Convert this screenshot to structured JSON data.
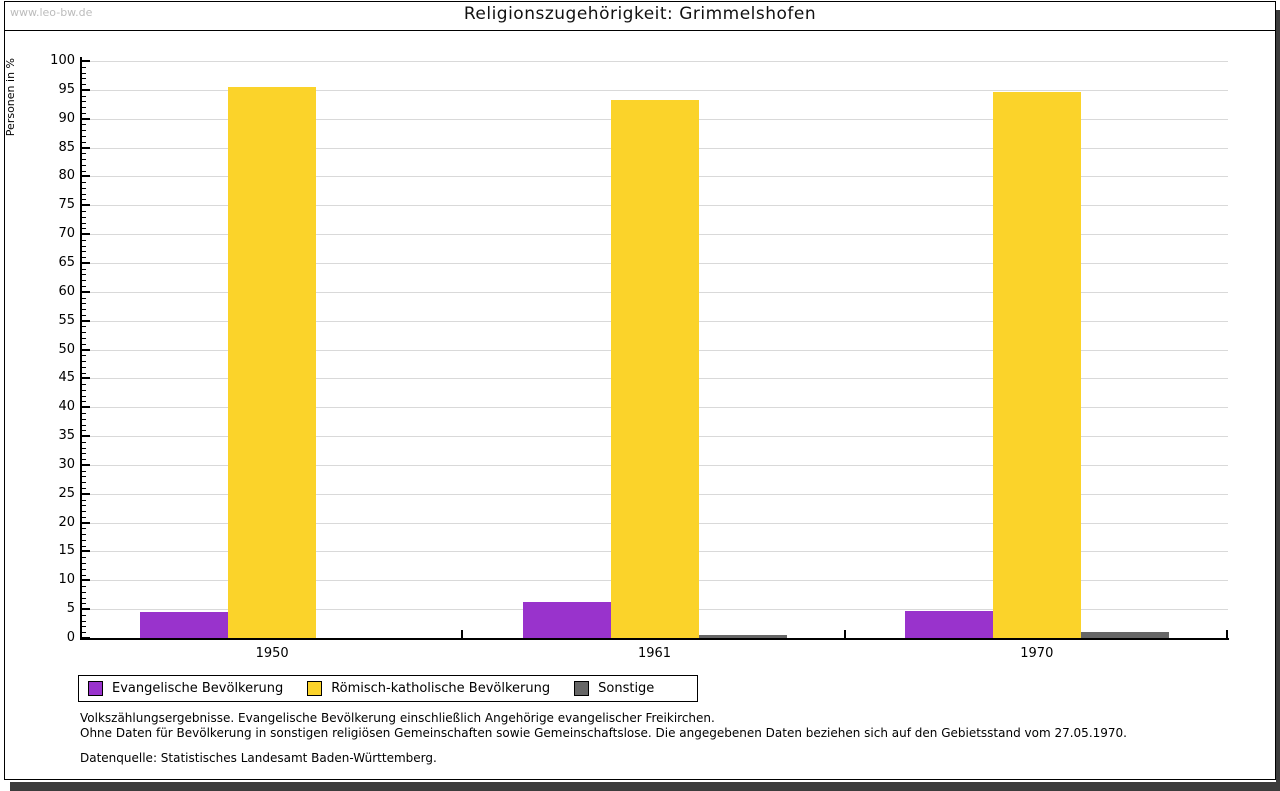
{
  "watermark": "www.leo-bw.de",
  "title": "Religionszugehörigkeit: Grimmelshofen",
  "chart_data": {
    "type": "bar",
    "title": "Religionszugehörigkeit: Grimmelshofen",
    "xlabel": "",
    "ylabel": "Personen in %",
    "categories": [
      "1950",
      "1961",
      "1970"
    ],
    "series": [
      {
        "name": "Evangelische Bevölkerung",
        "color": "#9933cc",
        "values": [
          4.5,
          6.2,
          4.6
        ]
      },
      {
        "name": "Römisch-katholische Bevölkerung",
        "color": "#fbd32a",
        "values": [
          95.5,
          93.3,
          94.7
        ]
      },
      {
        "name": "Sonstige",
        "color": "#666666",
        "values": [
          0,
          0.5,
          1.0
        ]
      }
    ],
    "ylim": [
      0,
      100
    ],
    "ytick_step": 5,
    "minor_tick_step": 1,
    "grid": true,
    "grid_color": "#d9d9d9",
    "axis_color": "#000000",
    "legend_position": "bottom"
  },
  "footnotes": {
    "line1": "Volkszählungsergebnisse. Evangelische Bevölkerung einschließlich Angehörige evangelischer Freikirchen.",
    "line2": "Ohne Daten für Bevölkerung in sonstigen religiösen Gemeinschaften sowie Gemeinschaftslose. Die angegebenen Daten beziehen sich auf den Gebietsstand vom 27.05.1970.",
    "source": "Datenquelle: Statistisches Landesamt Baden-Württemberg."
  }
}
